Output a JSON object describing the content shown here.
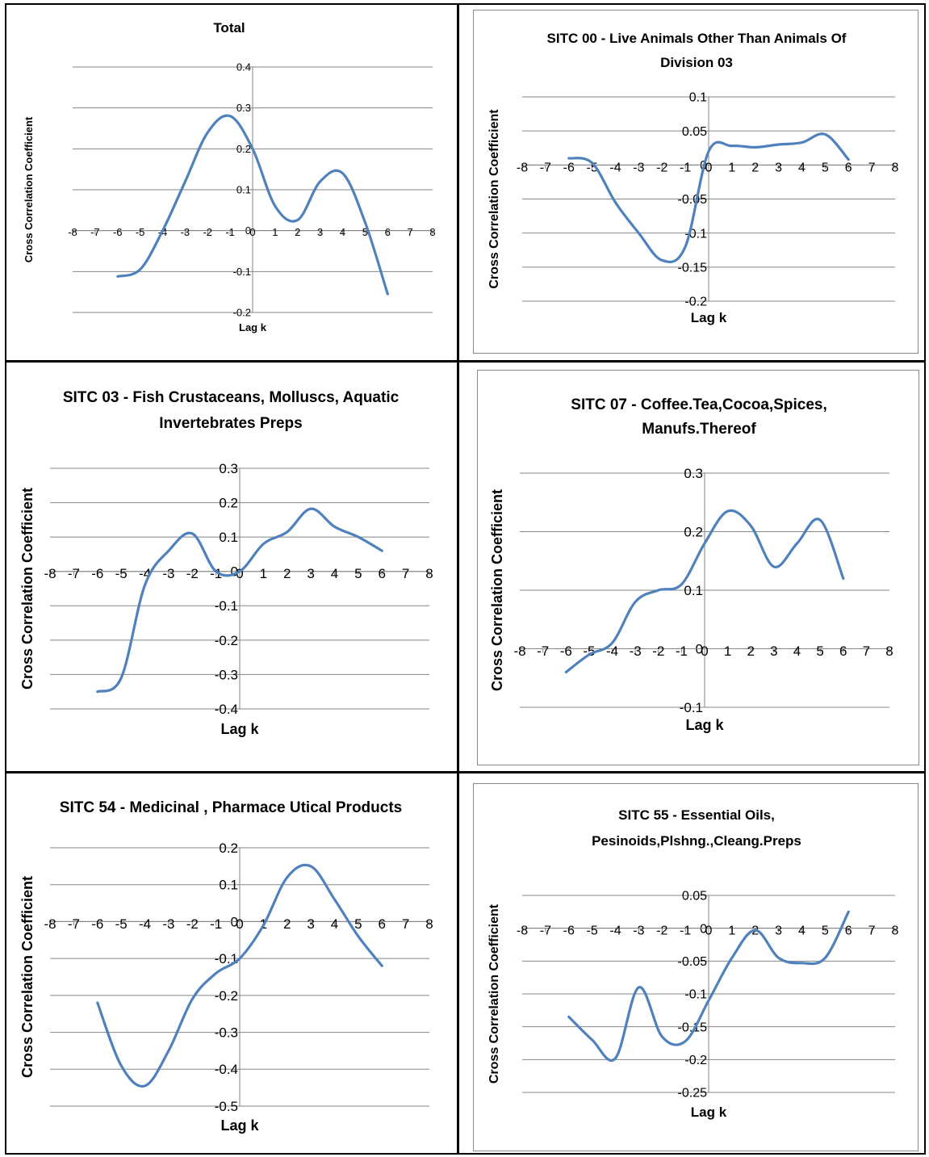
{
  "style": {
    "line_color": "#4f81bd",
    "grid_color": "#858585",
    "axis_color": "#858585",
    "border_color": "#000000"
  },
  "chart_data": [
    {
      "type": "line",
      "title": "Total",
      "xlabel": "Lag k",
      "ylabel": "Cross Correlation Coefficient",
      "xlim": [
        -8,
        8
      ],
      "ylim": [
        -0.2,
        0.4
      ],
      "x_ticks": [
        "-8",
        "-7",
        "-6",
        "-5",
        "-4",
        "-3",
        "-2",
        "-1",
        "0",
        "1",
        "2",
        "3",
        "4",
        "5",
        "6",
        "7",
        "8"
      ],
      "y_ticks": [
        "0.4",
        "0.3",
        "0.2",
        "0.1",
        "0",
        "-0.1",
        "-0.2"
      ],
      "grid": true,
      "legend": "none",
      "series": [
        {
          "x": [
            -6,
            -5,
            -4,
            -3,
            -2,
            -1,
            0,
            1,
            2,
            3,
            4,
            5,
            6
          ],
          "y": [
            -0.112,
            -0.095,
            0.0,
            0.12,
            0.24,
            0.28,
            0.2,
            0.06,
            0.026,
            0.12,
            0.14,
            0.02,
            -0.155
          ]
        }
      ]
    },
    {
      "type": "line",
      "title": "SITC 00 - Live Animals Other Than Animals Of Division 03",
      "xlabel": "Lag k",
      "ylabel": "Cross Correlation Coefficient",
      "xlim": [
        -8,
        8
      ],
      "ylim": [
        -0.2,
        0.1
      ],
      "x_ticks": [
        "-8",
        "-7",
        "-6",
        "-5",
        "-4",
        "-3",
        "-2",
        "-1",
        "0",
        "1",
        "2",
        "3",
        "4",
        "5",
        "6",
        "7",
        "8"
      ],
      "y_ticks": [
        "0.1",
        "0.05",
        "0",
        "-0.05",
        "-0.1",
        "-0.15",
        "-0.2"
      ],
      "grid": true,
      "legend": "none",
      "series": [
        {
          "x": [
            -6,
            -5,
            -4,
            -3,
            -2,
            -1,
            0,
            1,
            2,
            3,
            4,
            5,
            6
          ],
          "y": [
            0.01,
            0.003,
            -0.055,
            -0.1,
            -0.14,
            -0.12,
            0.02,
            0.028,
            0.026,
            0.03,
            0.033,
            0.045,
            0.008
          ]
        }
      ]
    },
    {
      "type": "line",
      "title": "SITC 03 - Fish Crustaceans, Molluscs, Aquatic Invertebrates Preps",
      "xlabel": "Lag k",
      "ylabel": "Cross Correlation Coefficient",
      "xlim": [
        -8,
        8
      ],
      "ylim": [
        -0.4,
        0.3
      ],
      "x_ticks": [
        "-8",
        "-7",
        "-6",
        "-5",
        "-4",
        "-3",
        "-2",
        "-1",
        "0",
        "1",
        "2",
        "3",
        "4",
        "5",
        "6",
        "7",
        "8"
      ],
      "y_ticks": [
        "0.3",
        "0.2",
        "0.1",
        "0",
        "-0.1",
        "-0.2",
        "-0.3",
        "-0.4"
      ],
      "grid": true,
      "legend": "none",
      "series": [
        {
          "x": [
            -6,
            -5,
            -4,
            -3,
            -2,
            -1,
            0,
            1,
            2,
            3,
            4,
            5,
            6
          ],
          "y": [
            -0.35,
            -0.31,
            -0.04,
            0.06,
            0.11,
            0.0,
            0.0,
            0.08,
            0.115,
            0.182,
            0.13,
            0.1,
            0.06
          ]
        }
      ]
    },
    {
      "type": "line",
      "title": "SITC 07 - Coffee.Tea,Cocoa,Spices, Manufs.Thereof",
      "xlabel": "Lag k",
      "ylabel": "Cross Correlation Coefficient",
      "xlim": [
        -8,
        8
      ],
      "ylim": [
        -0.1,
        0.3
      ],
      "x_ticks": [
        "-8",
        "-7",
        "-6",
        "-5",
        "-4",
        "-3",
        "-2",
        "-1",
        "0",
        "1",
        "2",
        "3",
        "4",
        "5",
        "6",
        "7",
        "8"
      ],
      "y_ticks": [
        "0.3",
        "0.2",
        "0.1",
        "0",
        "-0.1"
      ],
      "grid": true,
      "legend": "none",
      "series": [
        {
          "x": [
            -6,
            -5,
            -4,
            -3,
            -2,
            -1,
            0,
            1,
            2,
            3,
            4,
            5,
            6
          ],
          "y": [
            -0.04,
            -0.01,
            0.01,
            0.08,
            0.1,
            0.11,
            0.18,
            0.235,
            0.21,
            0.14,
            0.18,
            0.22,
            0.12
          ]
        }
      ]
    },
    {
      "type": "line",
      "title": "SITC 54 - Medicinal , Pharmace Utical Products",
      "xlabel": "Lag k",
      "ylabel": "Cross Correlation Coefficient",
      "xlim": [
        -8,
        8
      ],
      "ylim": [
        -0.5,
        0.2
      ],
      "x_ticks": [
        "-8",
        "-7",
        "-6",
        "-5",
        "-4",
        "-3",
        "-2",
        "-1",
        "0",
        "1",
        "2",
        "3",
        "4",
        "5",
        "6",
        "7",
        "8"
      ],
      "y_ticks": [
        "0.2",
        "0.1",
        "0",
        "-0.1",
        "-0.2",
        "-0.3",
        "-0.4",
        "-0.5"
      ],
      "grid": true,
      "legend": "none",
      "series": [
        {
          "x": [
            -6,
            -5,
            -4,
            -3,
            -2,
            -1,
            0,
            1,
            2,
            3,
            4,
            5,
            6
          ],
          "y": [
            -0.22,
            -0.39,
            -0.445,
            -0.35,
            -0.21,
            -0.14,
            -0.1,
            -0.01,
            0.12,
            0.15,
            0.06,
            -0.04,
            -0.12
          ]
        }
      ]
    },
    {
      "type": "line",
      "title": "SITC 55 - Essential Oils, Pesinoids,Plshng.,Cleang.Preps",
      "xlabel": "Lag k",
      "ylabel": "Cross Correlation Coefficient",
      "xlim": [
        -8,
        8
      ],
      "ylim": [
        -0.25,
        0.05
      ],
      "x_ticks": [
        "-8",
        "-7",
        "-6",
        "-5",
        "-4",
        "-3",
        "-2",
        "-1",
        "0",
        "1",
        "2",
        "3",
        "4",
        "5",
        "6",
        "7",
        "8"
      ],
      "y_ticks": [
        "0.05",
        "0",
        "-0.05",
        "-0.1",
        "-0.15",
        "-0.2",
        "-0.25"
      ],
      "grid": true,
      "legend": "none",
      "series": [
        {
          "x": [
            -6,
            -5,
            -4,
            -3,
            -2,
            -1,
            0,
            1,
            2,
            3,
            4,
            5,
            6
          ],
          "y": [
            -0.135,
            -0.17,
            -0.198,
            -0.09,
            -0.165,
            -0.172,
            -0.11,
            -0.045,
            -0.003,
            -0.045,
            -0.053,
            -0.045,
            0.025
          ]
        }
      ]
    }
  ]
}
